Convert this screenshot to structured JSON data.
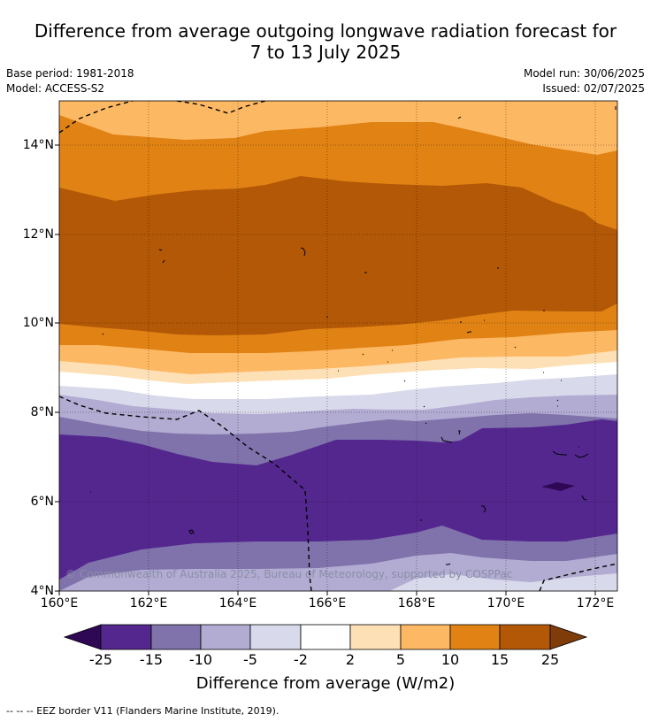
{
  "title_line1": "Difference from average outgoing longwave radiation forecast for",
  "title_line2": "7 to 13 July 2025",
  "base_period": "Base period: 1981-2018",
  "model": "Model: ACCESS-S2",
  "model_run": "Model run: 30/06/2025",
  "issued": "Issued: 02/07/2025",
  "lat_labels": [
    "14°N",
    "12°N",
    "10°N",
    "8°N",
    "6°N",
    "4°N"
  ],
  "lon_labels": [
    "160°E",
    "162°E",
    "164°E",
    "166°E",
    "168°E",
    "170°E",
    "172°E"
  ],
  "copyright": "© Commonwealth of Australia 2025, Bureau of Meteorology, supported by COSPPac",
  "colorbar": {
    "title": "Difference from average (W/m2)",
    "tick_labels": [
      "-25",
      "-15",
      "-10",
      "-5",
      "-2",
      "2",
      "5",
      "10",
      "15",
      "25"
    ],
    "colors": [
      "#2e0854",
      "#54278f",
      "#8073ac",
      "#b2abd2",
      "#d8daeb",
      "#ffffff",
      "#fee0b6",
      "#fdb863",
      "#e08214",
      "#b35806",
      "#7f3b08"
    ]
  },
  "footer": "--  --  -- EEZ border V11 (Flanders Marine Institute, 2019)."
}
